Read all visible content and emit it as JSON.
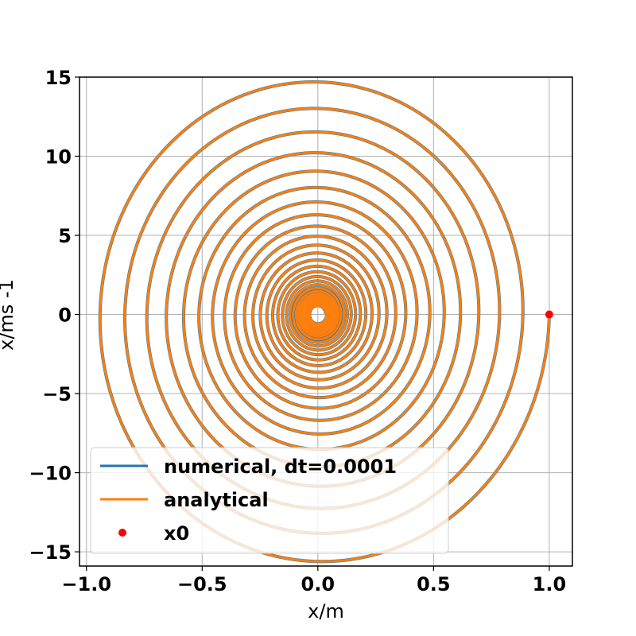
{
  "chart_data": {
    "type": "line",
    "title": "",
    "xlabel": "x/m",
    "ylabel": "x/ms -1",
    "xlim": [
      -1.03,
      1.1
    ],
    "ylim": [
      -15.9,
      15.0
    ],
    "grid": true,
    "legend_position": "lower-left",
    "xticks": [
      -1.0,
      -0.5,
      0.0,
      0.5,
      1.0
    ],
    "xtick_labels": [
      "−1.0",
      "−0.5",
      "0.0",
      "0.5",
      "1.0"
    ],
    "yticks": [
      15,
      10,
      5,
      0,
      -5,
      -10,
      -15
    ],
    "ytick_labels": [
      "15",
      "10",
      "5",
      "0",
      "−5",
      "−10",
      "−15"
    ],
    "series": [
      {
        "name": "numerical, dt=0.0001",
        "kind": "line",
        "color": "#1f77b4",
        "x0": 1.0,
        "v0": 0.0,
        "omega_ratio": 16.09,
        "decay_per_turn": 0.886,
        "turns": 28
      },
      {
        "name": "analytical",
        "kind": "line",
        "color": "#ff7f0e",
        "x0": 1.0,
        "v0": 0.0,
        "omega_ratio": 16.09,
        "decay_per_turn": 0.886,
        "turns": 28
      },
      {
        "name": "x0",
        "kind": "point",
        "color": "#ff0000",
        "x": 1.0,
        "y": 0.0
      }
    ]
  }
}
